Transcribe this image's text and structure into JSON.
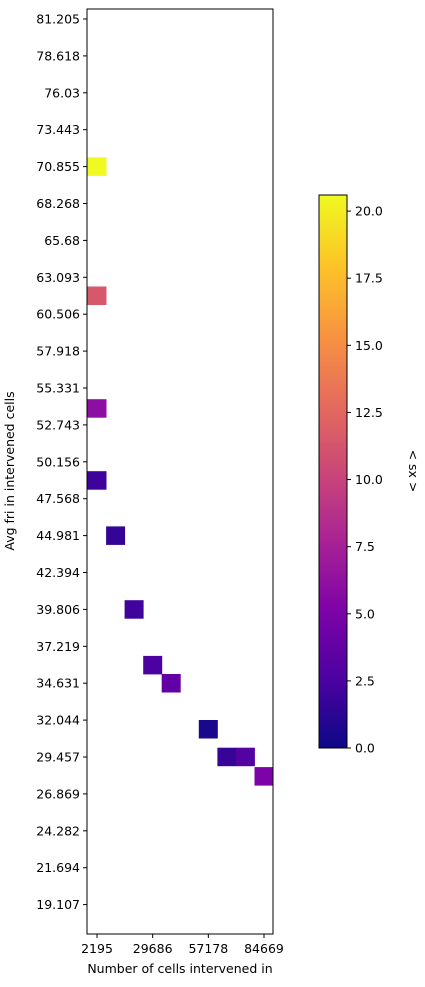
{
  "chart_data": {
    "type": "heatmap",
    "xlabel": "Number of cells intervened in",
    "ylabel": "Avg fri in intervened cells",
    "colorbar_label": "< sx >",
    "colormap": "plasma",
    "x_tick_labels": [
      "2195",
      "29686",
      "57178",
      "84669"
    ],
    "y_tick_labels": [
      "81.205",
      "78.618",
      "76.03",
      "73.443",
      "70.855",
      "68.268",
      "65.68",
      "63.093",
      "60.506",
      "57.918",
      "55.331",
      "52.743",
      "50.156",
      "47.568",
      "44.981",
      "42.394",
      "39.806",
      "37.219",
      "34.631",
      "32.044",
      "29.457",
      "26.869",
      "24.282",
      "21.694",
      "19.107"
    ],
    "colorbar_ticks": [
      "0.0",
      "2.5",
      "5.0",
      "7.5",
      "10.0",
      "12.5",
      "15.0",
      "17.5",
      "20.0"
    ],
    "value_range": [
      0,
      20.6
    ],
    "grid": false,
    "cells": [
      {
        "x": 2195,
        "y": 70.855,
        "value": 20.6
      },
      {
        "x": 2195,
        "y": 61.8,
        "value": 11.5
      },
      {
        "x": 2195,
        "y": 53.9,
        "value": 6.0
      },
      {
        "x": 2195,
        "y": 48.85,
        "value": 2.0
      },
      {
        "x": 11360,
        "y": 44.981,
        "value": 1.6
      },
      {
        "x": 20523,
        "y": 39.806,
        "value": 2.1
      },
      {
        "x": 29686,
        "y": 35.9,
        "value": 2.6
      },
      {
        "x": 38850,
        "y": 34.631,
        "value": 3.7
      },
      {
        "x": 57178,
        "y": 31.4,
        "value": 0.5
      },
      {
        "x": 66340,
        "y": 29.457,
        "value": 1.7
      },
      {
        "x": 75500,
        "y": 29.457,
        "value": 3.0
      },
      {
        "x": 84669,
        "y": 28.1,
        "value": 5.0
      }
    ]
  }
}
